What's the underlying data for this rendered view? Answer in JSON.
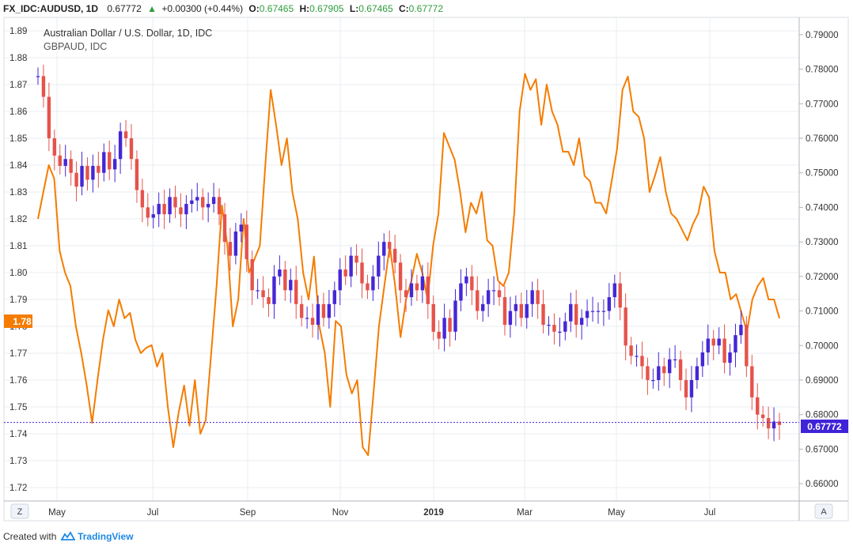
{
  "header": {
    "symbol": "FX_IDC:AUDUSD, 1D",
    "last": "0.67772",
    "change_arrow": "▲",
    "change": "+0.00300 (+0.44%)",
    "open_label": "O:",
    "open": "0.67465",
    "high_label": "H:",
    "high": "0.67905",
    "low_label": "L:",
    "low": "0.67465",
    "close_label": "C:",
    "close": "0.67772"
  },
  "legend": {
    "main": "Australian Dollar / U.S. Dollar, 1D, IDC",
    "compare": "GBPAUD, IDC"
  },
  "left_axis": {
    "ticks": [
      "1.89",
      "1.88",
      "1.87",
      "1.86",
      "1.85",
      "1.84",
      "1.83",
      "1.82",
      "1.81",
      "1.80",
      "1.79",
      "1.78",
      "1.77",
      "1.76",
      "1.75",
      "1.74",
      "1.73",
      "1.72"
    ],
    "marker": "1.78"
  },
  "right_axis": {
    "ticks": [
      "0.79000",
      "0.78000",
      "0.77000",
      "0.76000",
      "0.75000",
      "0.74000",
      "0.73000",
      "0.72000",
      "0.71000",
      "0.70000",
      "0.69000",
      "0.68000",
      "0.67000",
      "0.66000"
    ],
    "marker": "0.67772"
  },
  "time_axis": [
    "May",
    "Jul",
    "Sep",
    "Nov",
    "2019",
    "Mar",
    "May",
    "Jul"
  ],
  "buttons": {
    "zoom": "Z",
    "auto": "A"
  },
  "footer": {
    "created_with": "Created with",
    "brand": "TradingView"
  },
  "colors": {
    "up": "#4527d6",
    "down": "#e5534b",
    "compare": "#f57c00",
    "grid": "#e9edf2",
    "axis": "#b2b5be"
  },
  "chart_data": {
    "type": "line",
    "title": "Australian Dollar / U.S. Dollar, 1D, IDC",
    "left_ylim": [
      1.715,
      1.895
    ],
    "right_ylim": [
      0.655,
      0.795
    ],
    "series": [
      {
        "name": "AUD/USD (candles, right axis)",
        "axis": "right",
        "values": [
          0.778,
          0.772,
          0.76,
          0.755,
          0.752,
          0.754,
          0.75,
          0.746,
          0.752,
          0.748,
          0.752,
          0.75,
          0.756,
          0.751,
          0.754,
          0.762,
          0.76,
          0.754,
          0.745,
          0.74,
          0.737,
          0.738,
          0.741,
          0.738,
          0.743,
          0.74,
          0.738,
          0.741,
          0.742,
          0.743,
          0.74,
          0.741,
          0.743,
          0.738,
          0.73,
          0.726,
          0.733,
          0.735,
          0.725,
          0.716,
          0.716,
          0.714,
          0.712,
          0.72,
          0.722,
          0.716,
          0.719,
          0.712,
          0.708,
          0.708,
          0.706,
          0.712,
          0.708,
          0.712,
          0.716,
          0.722,
          0.72,
          0.726,
          0.724,
          0.718,
          0.716,
          0.72,
          0.726,
          0.73,
          0.728,
          0.724,
          0.716,
          0.714,
          0.718,
          0.716,
          0.72,
          0.712,
          0.704,
          0.702,
          0.708,
          0.704,
          0.713,
          0.718,
          0.72,
          0.716,
          0.71,
          0.712,
          0.716,
          0.716,
          0.714,
          0.706,
          0.71,
          0.712,
          0.708,
          0.712,
          0.716,
          0.712,
          0.706,
          0.706,
          0.704,
          0.704,
          0.707,
          0.712,
          0.706,
          0.708,
          0.71,
          0.71,
          0.71,
          0.71,
          0.714,
          0.718,
          0.711,
          0.7,
          0.697,
          0.697,
          0.694,
          0.69,
          0.69,
          0.694,
          0.692,
          0.696,
          0.696,
          0.69,
          0.685,
          0.69,
          0.694,
          0.698,
          0.702,
          0.7,
          0.702,
          0.695,
          0.698,
          0.703,
          0.706,
          0.694,
          0.685,
          0.68,
          0.679,
          0.676,
          0.678,
          0.677
        ]
      },
      {
        "name": "GBPAUD (line, left axis)",
        "axis": "left",
        "values": [
          1.82,
          1.83,
          1.84,
          1.835,
          1.808,
          1.8,
          1.795,
          1.78,
          1.77,
          1.758,
          1.744,
          1.76,
          1.775,
          1.786,
          1.78,
          1.79,
          1.783,
          1.785,
          1.775,
          1.77,
          1.772,
          1.773,
          1.765,
          1.77,
          1.75,
          1.735,
          1.748,
          1.758,
          1.743,
          1.76,
          1.74,
          1.745,
          1.77,
          1.795,
          1.825,
          1.81,
          1.78,
          1.79,
          1.82,
          1.8,
          1.805,
          1.81,
          1.84,
          1.868,
          1.855,
          1.84,
          1.85,
          1.83,
          1.82,
          1.8,
          1.79,
          1.806,
          1.78,
          1.77,
          1.75,
          1.782,
          1.78,
          1.762,
          1.755,
          1.76,
          1.735,
          1.732,
          1.755,
          1.78,
          1.795,
          1.81,
          1.795,
          1.776,
          1.79,
          1.797,
          1.807,
          1.8,
          1.79,
          1.81,
          1.822,
          1.852,
          1.847,
          1.842,
          1.83,
          1.815,
          1.826,
          1.822,
          1.83,
          1.812,
          1.81,
          1.797,
          1.795,
          1.8,
          1.822,
          1.86,
          1.874,
          1.868,
          1.872,
          1.855,
          1.87,
          1.86,
          1.855,
          1.845,
          1.845,
          1.84,
          1.85,
          1.836,
          1.834,
          1.826,
          1.826,
          1.822,
          1.834,
          1.846,
          1.868,
          1.873,
          1.86,
          1.858,
          1.85,
          1.83,
          1.836,
          1.843,
          1.83,
          1.822,
          1.82,
          1.816,
          1.812,
          1.818,
          1.822,
          1.832,
          1.828,
          1.808,
          1.8,
          1.8,
          1.79,
          1.792,
          1.785,
          1.778,
          1.79,
          1.795,
          1.798,
          1.79,
          1.79,
          1.783
        ]
      }
    ]
  }
}
